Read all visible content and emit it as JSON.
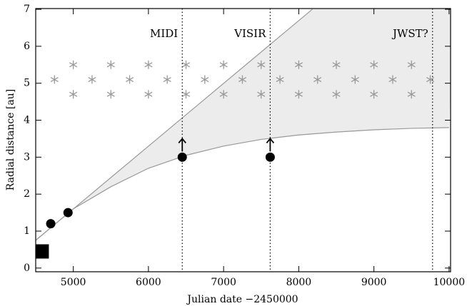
{
  "chart_data": {
    "type": "scatter",
    "xlabel": "Julian date −2450000",
    "ylabel": "Radial distance [au]",
    "xlim": [
      4500,
      10020
    ],
    "ylim": [
      -0.1,
      7.02
    ],
    "xticks": [
      5000,
      6000,
      7000,
      8000,
      9000,
      10000
    ],
    "yticks": [
      0,
      1,
      2,
      3,
      4,
      5,
      6,
      7
    ],
    "region": {
      "color": "#ececec",
      "line_color": "#999999",
      "upper": {
        "x": [
          4500,
          8180
        ],
        "values": [
          0.75,
          7
        ]
      },
      "lower": {
        "x": [
          4500,
          5000,
          5500,
          6000,
          6500,
          7000,
          7500,
          8000,
          8500,
          9000,
          9500,
          10000
        ],
        "values": [
          0.75,
          1.6,
          2.2,
          2.7,
          3.05,
          3.3,
          3.48,
          3.6,
          3.68,
          3.74,
          3.78,
          3.8
        ]
      }
    },
    "vlines": [
      {
        "x": 6450,
        "label": "MIDI"
      },
      {
        "x": 7620,
        "label": "VISIR"
      },
      {
        "x": 9780,
        "label": "JWST?"
      }
    ],
    "series": [
      {
        "marker": "star",
        "color": "#999999",
        "x": [
          5000,
          5500,
          6000,
          6500,
          7000,
          7500,
          8000,
          8500,
          9000,
          9500,
          4750,
          5250,
          5750,
          6250,
          6750,
          7250,
          7750,
          8250,
          8750,
          9250,
          9750,
          5000,
          5500,
          6000,
          6500,
          7000,
          7500,
          8000,
          8500,
          9000,
          9500
        ],
        "values": [
          5.5,
          5.5,
          5.5,
          5.5,
          5.5,
          5.5,
          5.5,
          5.5,
          5.5,
          5.5,
          5.1,
          5.1,
          5.1,
          5.1,
          5.1,
          5.1,
          5.1,
          5.1,
          5.1,
          5.1,
          5.1,
          4.7,
          4.7,
          4.7,
          4.7,
          4.7,
          4.7,
          4.7,
          4.7,
          4.7,
          4.7
        ]
      },
      {
        "marker": "square",
        "color": "#000000",
        "x": [
          4580
        ],
        "values": [
          0.45
        ]
      },
      {
        "marker": "circle",
        "color": "#000000",
        "x": [
          4700,
          4930,
          6450,
          7620
        ],
        "values": [
          1.2,
          1.5,
          3.0,
          3.0
        ]
      }
    ],
    "arrows": {
      "x": [
        6450,
        7620
      ],
      "values": [
        3.0,
        3.0
      ],
      "ends": [
        3.5,
        3.5
      ]
    }
  }
}
